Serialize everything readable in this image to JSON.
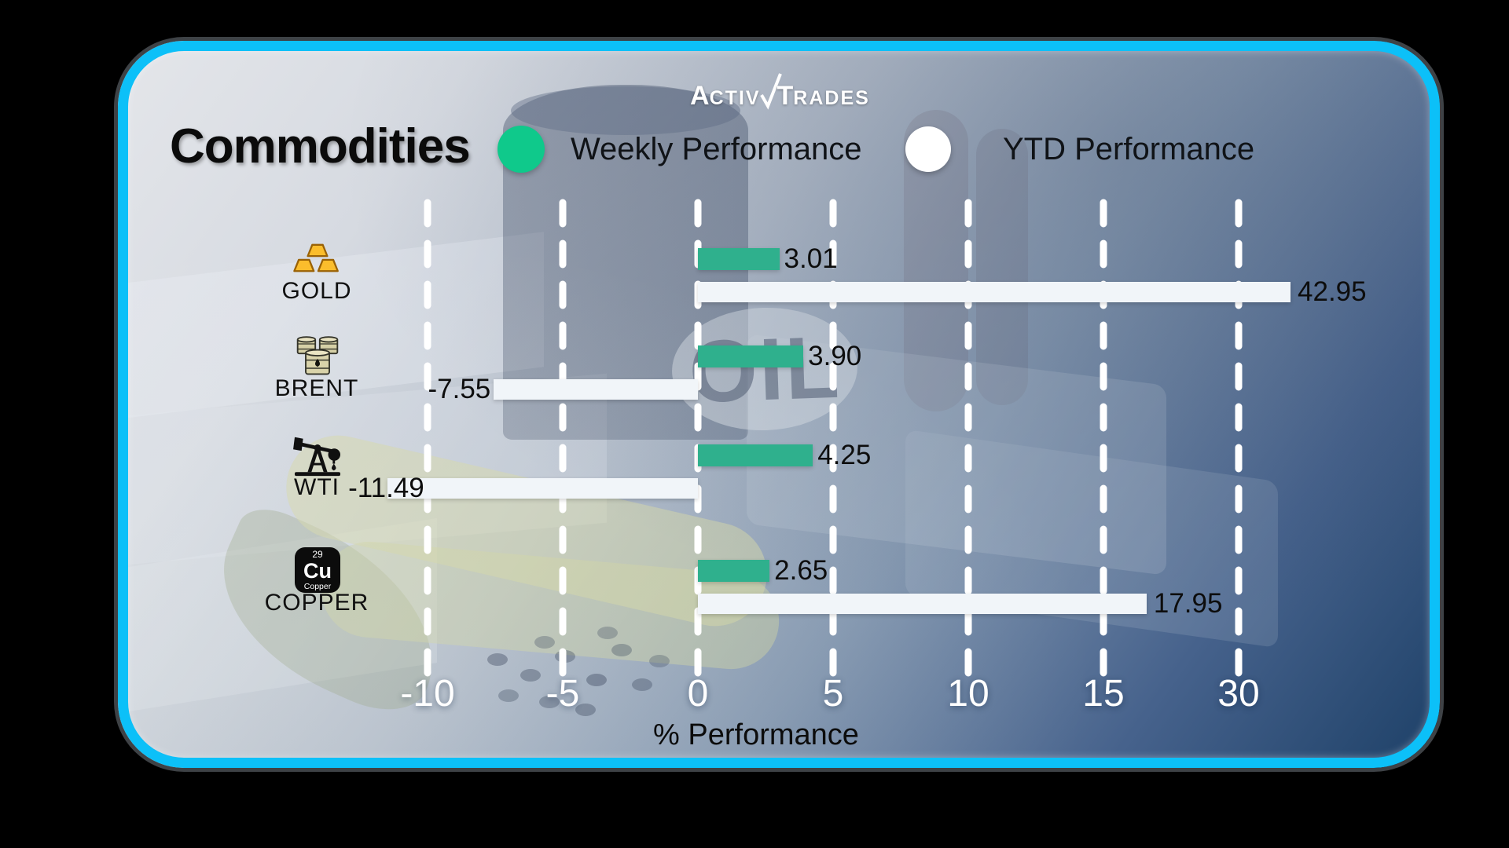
{
  "brand": {
    "logo_a": "A",
    "logo_ctiv": "CTIV",
    "logo_t": "T",
    "logo_rades": "RADES"
  },
  "title": "Commodities",
  "legend": {
    "weekly": "Weekly Performance",
    "ytd": "YTD Performance"
  },
  "axis": {
    "ticks": [
      "-10",
      "-5",
      "0",
      "5",
      "10",
      "15",
      "30"
    ],
    "label": "% Performance"
  },
  "watermark": "OIL",
  "colors": {
    "border_cyan": "#0cc0f8",
    "legend_green": "#0fc98b",
    "weekly_bar_green": "#2fb08d",
    "ytd_bar_white": "#f1f5f9"
  },
  "rows": [
    {
      "name": "GOLD",
      "icon": "gold-bars-icon",
      "weekly": "3.01",
      "ytd": "42.95"
    },
    {
      "name": "BRENT",
      "icon": "oil-barrels-icon",
      "weekly": "3.90",
      "ytd": "-7.55"
    },
    {
      "name": "WTI",
      "icon": "pump-jack-icon",
      "weekly": "4.25",
      "ytd": "-11.49"
    },
    {
      "name": "COPPER",
      "icon": "copper-element-icon",
      "weekly": "2.65",
      "ytd": "17.95"
    }
  ],
  "copper_tile": {
    "number": "29",
    "symbol": "Cu",
    "label": "Copper"
  },
  "chart_data": {
    "type": "bar",
    "orientation": "horizontal",
    "title": "Commodities",
    "xlabel": "% Performance",
    "categories": [
      "GOLD",
      "BRENT",
      "WTI",
      "COPPER"
    ],
    "series": [
      {
        "name": "Weekly Performance",
        "color": "#2fb08d",
        "values": [
          3.01,
          3.9,
          4.25,
          2.65
        ]
      },
      {
        "name": "YTD Performance",
        "color": "#f1f5f9",
        "values": [
          42.95,
          -7.55,
          -11.49,
          17.95
        ]
      }
    ],
    "x_ticks": [
      -10,
      -5,
      0,
      5,
      10,
      15,
      30
    ],
    "xlim": [
      -12.5,
      45
    ],
    "grid": "dashed-vertical-white",
    "legend_position": "top",
    "axis_note": "x spacing compressed beyond 15"
  }
}
